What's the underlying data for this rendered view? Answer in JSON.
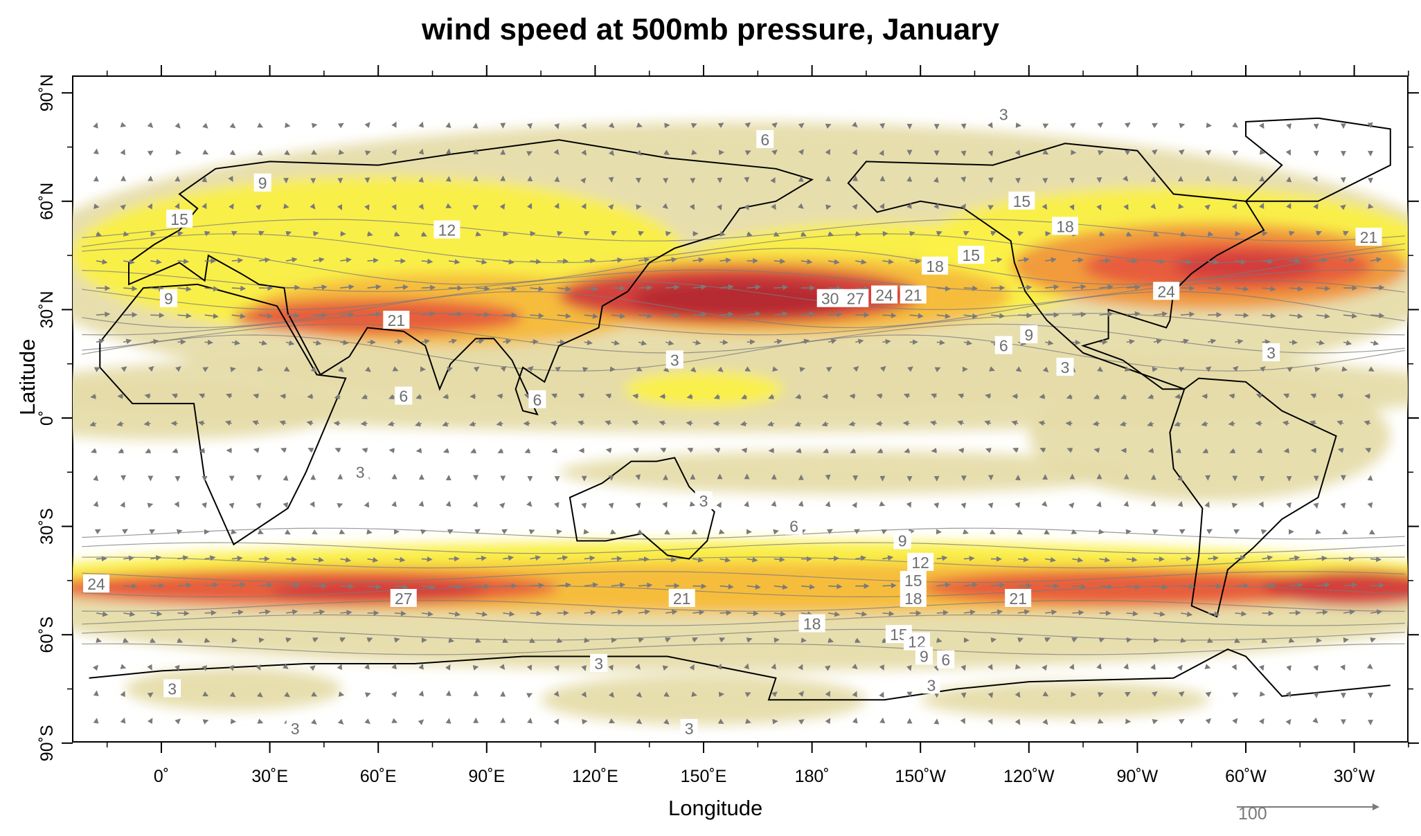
{
  "title": "wind speed at 500mb pressure, January",
  "xlabel": "Longitude",
  "ylabel": "Latitude",
  "x_ticks": [
    "0˚",
    "30˚E",
    "60˚E",
    "90˚E",
    "120˚E",
    "150˚E",
    "180˚",
    "150˚W",
    "120˚W",
    "90˚W",
    "60˚W",
    "30˚W"
  ],
  "y_ticks": [
    "90˚N",
    "60˚N",
    "30˚N",
    "0˚",
    "30˚S",
    "60˚S",
    "90˚S"
  ],
  "reference_vector": {
    "label": "100"
  },
  "colors": {
    "level_3": "#e6dcaa",
    "level_9": "#fbf046",
    "level_12": "#f8dc3c",
    "level_15": "#f5b93c",
    "level_18": "#f0963c",
    "level_21": "#e65a3c",
    "level_24": "#d23c3c",
    "level_27": "#b42832",
    "contour_line": "#7a7a7a",
    "coastline": "#000000"
  },
  "contour_levels": [
    3,
    6,
    9,
    12,
    15,
    18,
    21,
    24,
    27,
    30
  ],
  "contour_labels": [
    {
      "text": "3",
      "lon": 233,
      "lat": 84
    },
    {
      "text": "6",
      "lon": 167,
      "lat": 77
    },
    {
      "text": "9",
      "lon": 28,
      "lat": 65
    },
    {
      "text": "15",
      "lon": 5,
      "lat": 55
    },
    {
      "text": "12",
      "lon": 79,
      "lat": 52
    },
    {
      "text": "15",
      "lon": 238,
      "lat": 60
    },
    {
      "text": "18",
      "lon": 250,
      "lat": 53
    },
    {
      "text": "15",
      "lon": 224,
      "lat": 45
    },
    {
      "text": "18",
      "lon": 214,
      "lat": 42
    },
    {
      "text": "9",
      "lon": 2,
      "lat": 33
    },
    {
      "text": "30",
      "lon": 185,
      "lat": 33
    },
    {
      "text": "27",
      "lon": 192,
      "lat": 33
    },
    {
      "text": "24",
      "lon": 200,
      "lat": 34
    },
    {
      "text": "21",
      "lon": 208,
      "lat": 34
    },
    {
      "text": "24",
      "lon": 278,
      "lat": 35
    },
    {
      "text": "21",
      "lon": 334,
      "lat": 50
    },
    {
      "text": "21",
      "lon": 65,
      "lat": 27
    },
    {
      "text": "9",
      "lon": 240,
      "lat": 23
    },
    {
      "text": "6",
      "lon": 233,
      "lat": 20
    },
    {
      "text": "3",
      "lon": 142,
      "lat": 16
    },
    {
      "text": "3",
      "lon": 250,
      "lat": 14
    },
    {
      "text": "3",
      "lon": 307,
      "lat": 18
    },
    {
      "text": "6",
      "lon": 67,
      "lat": 6
    },
    {
      "text": "6",
      "lon": 104,
      "lat": 5
    },
    {
      "text": "3",
      "lon": 55,
      "lat": -15
    },
    {
      "text": "3",
      "lon": 150,
      "lat": -23
    },
    {
      "text": "6",
      "lon": 175,
      "lat": -30
    },
    {
      "text": "9",
      "lon": 205,
      "lat": -34
    },
    {
      "text": "12",
      "lon": 210,
      "lat": -40
    },
    {
      "text": "15",
      "lon": 208,
      "lat": -45
    },
    {
      "text": "18",
      "lon": 208,
      "lat": -50
    },
    {
      "text": "24",
      "lon": -18,
      "lat": -46
    },
    {
      "text": "27",
      "lon": 67,
      "lat": -50
    },
    {
      "text": "21",
      "lon": 144,
      "lat": -50
    },
    {
      "text": "21",
      "lon": 237,
      "lat": -50
    },
    {
      "text": "18",
      "lon": 180,
      "lat": -57
    },
    {
      "text": "15",
      "lon": 204,
      "lat": -60
    },
    {
      "text": "12",
      "lon": 209,
      "lat": -62
    },
    {
      "text": "9",
      "lon": 211,
      "lat": -66
    },
    {
      "text": "6",
      "lon": 217,
      "lat": -67
    },
    {
      "text": "3",
      "lon": 121,
      "lat": -68
    },
    {
      "text": "3",
      "lon": 3,
      "lat": -75
    },
    {
      "text": "3",
      "lon": 213,
      "lat": -74
    },
    {
      "text": "3",
      "lon": 37,
      "lat": -86
    },
    {
      "text": "3",
      "lon": 146,
      "lat": -86
    }
  ]
}
